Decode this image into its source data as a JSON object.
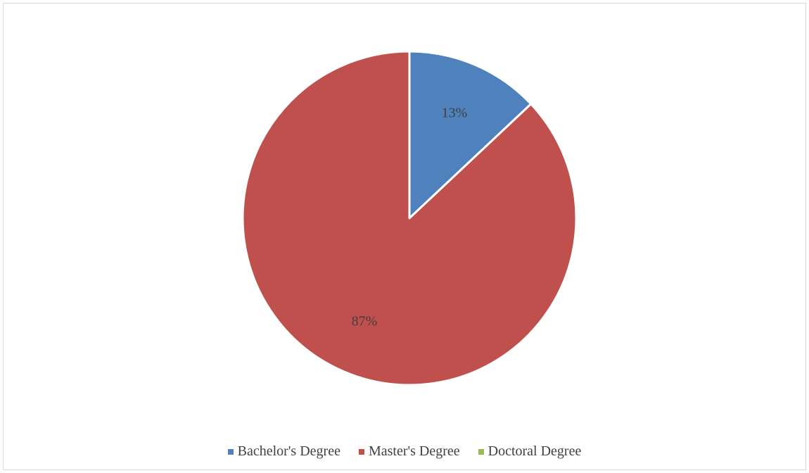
{
  "chart_data": {
    "type": "pie",
    "title": "",
    "categories": [
      "Bachelor's Degree",
      "Master's Degree",
      "Doctoral Degree"
    ],
    "values": [
      13,
      87,
      0
    ],
    "data_labels": [
      "13%",
      "87%",
      ""
    ],
    "colors": [
      "#4f81bd",
      "#c0504d",
      "#9bbb59"
    ],
    "start_angle_deg": 0,
    "direction": "clockwise",
    "legend": {
      "placement": "bottom",
      "entries": [
        {
          "label": "Bachelor's Degree",
          "color": "#4f81bd"
        },
        {
          "label": "Master's Degree",
          "color": "#c0504d"
        },
        {
          "label": "Doctoral Degree",
          "color": "#9bbb59"
        }
      ]
    }
  }
}
